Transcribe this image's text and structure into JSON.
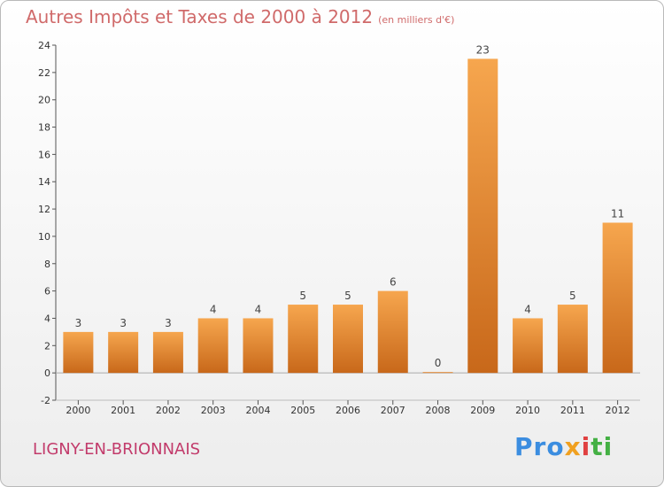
{
  "title": "Autres Impôts et Taxes de 2000 à 2012",
  "unit": "(en milliers d'€)",
  "commune": "LIGNY-EN-BRIONNAIS",
  "logo": {
    "p1": "Pro",
    "p2": "x",
    "p3": "i",
    "p4": "ti"
  },
  "colors": {
    "bar_light": "#f6a64e",
    "bar_dark": "#c8681a",
    "title": "#d06a6a",
    "commune": "#c23b6b"
  },
  "chart_data": {
    "type": "bar",
    "categories": [
      "2000",
      "2001",
      "2002",
      "2003",
      "2004",
      "2005",
      "2006",
      "2007",
      "2008",
      "2009",
      "2010",
      "2011",
      "2012"
    ],
    "values": [
      3,
      3,
      3,
      4,
      4,
      5,
      5,
      6,
      0,
      23,
      4,
      5,
      11
    ],
    "title": "Autres Impôts et Taxes de 2000 à 2012",
    "ylim": [
      -2,
      24
    ],
    "yticks": [
      -2,
      0,
      2,
      4,
      6,
      8,
      10,
      12,
      14,
      16,
      18,
      20,
      22,
      24
    ],
    "grid": false,
    "legend": "none"
  }
}
